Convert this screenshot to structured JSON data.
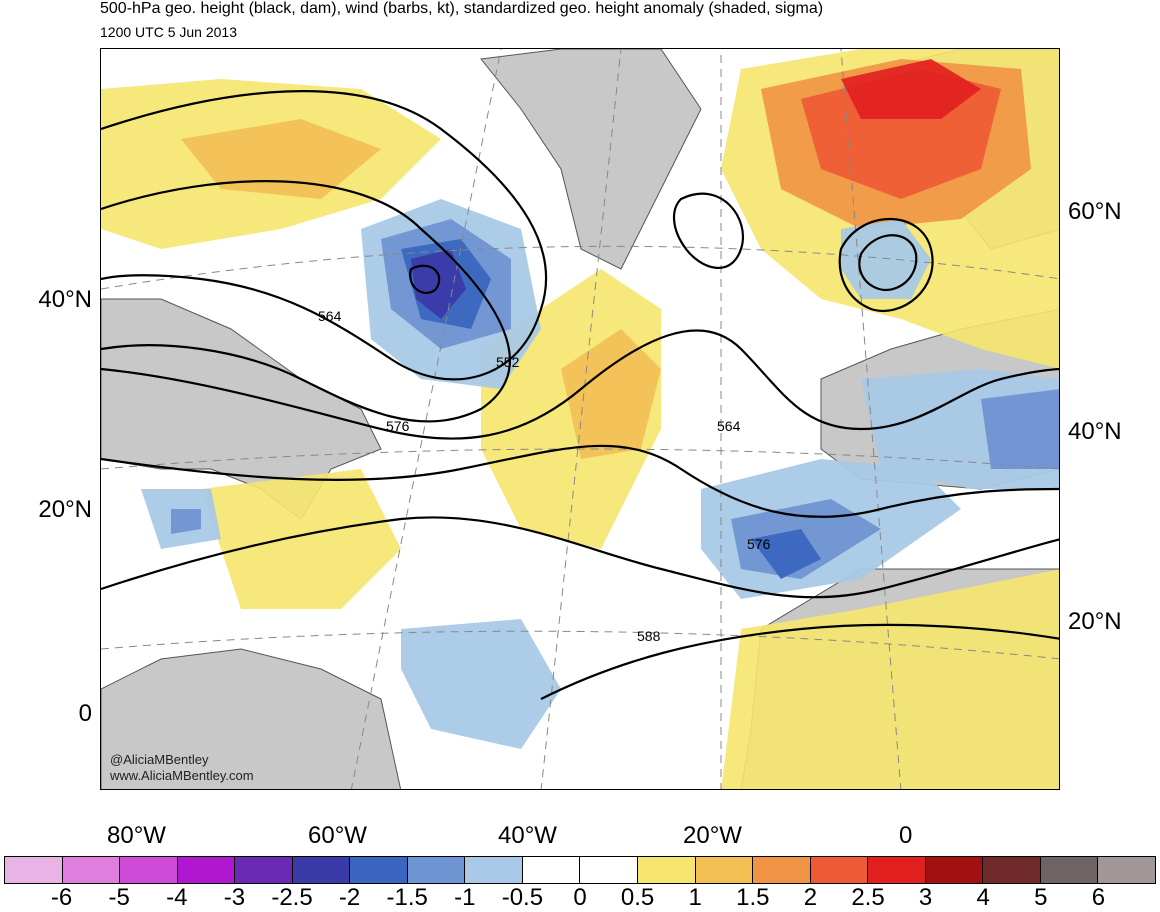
{
  "header": {
    "title": "500-hPa geo. height (black, dam), wind (barbs, kt), standardized geo. height anomaly (shaded, sigma)",
    "valid_time": "1200 UTC 5 Jun 2013"
  },
  "credit": {
    "handle": "@AliciaMBentley",
    "site": "www.AliciaMBentley.com"
  },
  "axes": {
    "left_lat_labels": [
      "40°N",
      "20°N",
      "0"
    ],
    "right_lat_labels": [
      "60°N",
      "40°N",
      "20°N"
    ],
    "lon_labels": [
      "80°W",
      "60°W",
      "40°W",
      "20°W",
      "0"
    ]
  },
  "contour_labels": [
    "564",
    "552",
    "576",
    "564",
    "576",
    "588"
  ],
  "colorbar": {
    "tick_labels": [
      "-6",
      "-5",
      "-4",
      "-3",
      "-2.5",
      "-2",
      "-1.5",
      "-1",
      "-0.5",
      "0",
      "0.5",
      "1",
      "1.5",
      "2",
      "2.5",
      "3",
      "4",
      "5",
      "6"
    ],
    "colors": [
      "#e8b4e6",
      "#e07ee0",
      "#d04ad8",
      "#b018d0",
      "#6a2ab4",
      "#3a3aa8",
      "#3a66c0",
      "#6f94d2",
      "#a9c9e6",
      "#ffffff",
      "#ffffff",
      "#f6e56e",
      "#f2bf55",
      "#ef9444",
      "#ee5a34",
      "#e11f1f",
      "#a40f12",
      "#702a2a",
      "#6e6464",
      "#a39696"
    ]
  },
  "colors": {
    "land": "#c8c8c8",
    "coast": "#555555"
  }
}
